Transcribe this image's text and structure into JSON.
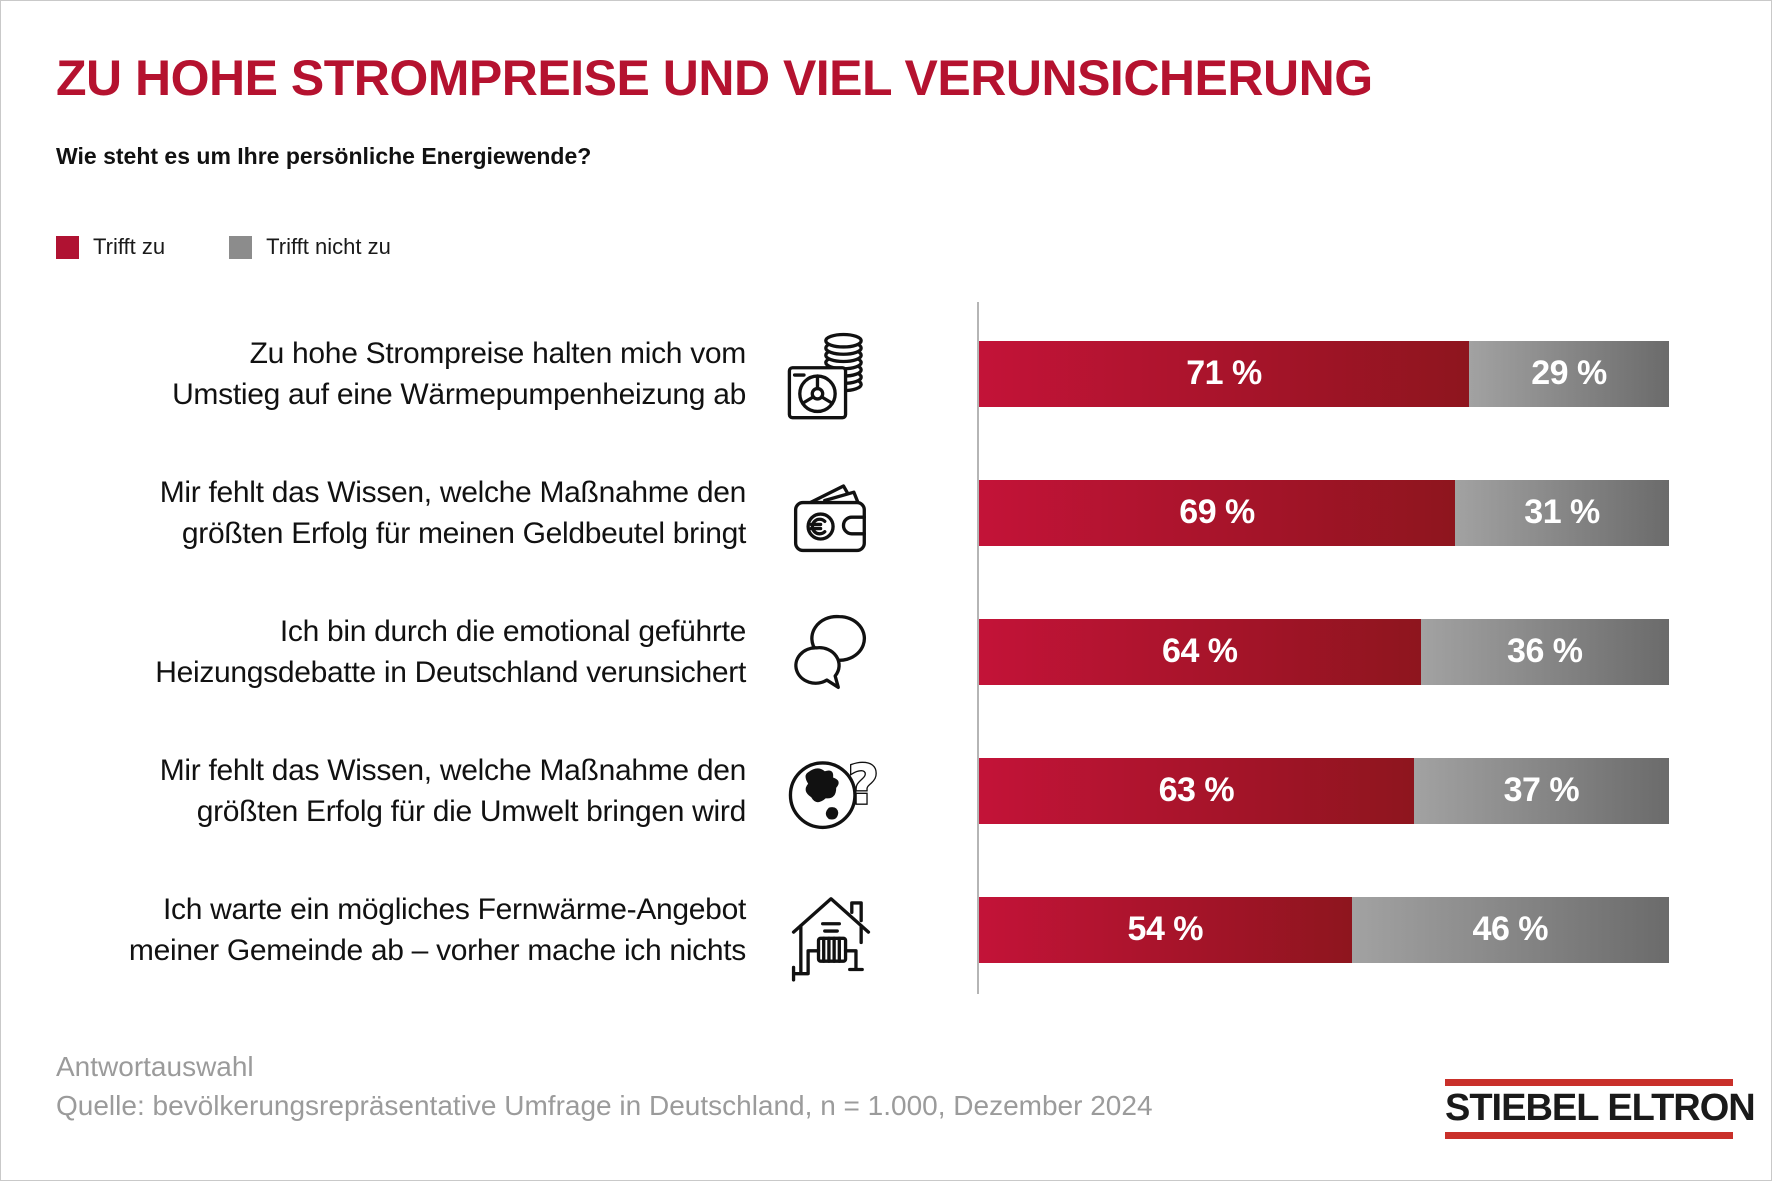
{
  "header": {
    "title": "ZU HOHE STROMPREISE UND VIEL VERUNSICHERUNG",
    "subtitle": "Wie steht es um Ihre persönliche Energiewende?"
  },
  "legend": {
    "items": [
      {
        "label": "Trifft zu",
        "color": "#b01232"
      },
      {
        "label": "Trifft nicht zu",
        "color": "#8c8c8c"
      }
    ]
  },
  "chart_data": {
    "type": "bar",
    "orientation": "horizontal-stacked",
    "unit": "%",
    "xlim": [
      0,
      100
    ],
    "grid": false,
    "categories": [
      "Zu hohe Strompreise halten mich vom\nUmstieg auf eine Wärmepumpenheizung ab",
      "Mir fehlt das Wissen, welche Maßnahme den\ngrößten Erfolg für meinen Geldbeutel bringt",
      "Ich bin durch die emotional geführte\nHeizungsdebatte in Deutschland verunsichert",
      "Mir fehlt das Wissen, welche Maßnahme den\ngrößten Erfolg für die Umwelt bringen wird",
      "Ich warte ein mögliches Fernwärme-Angebot\nmeiner Gemeinde ab – vorher mache ich nichts"
    ],
    "icons": [
      "heat-pump-coins-icon",
      "wallet-euro-icon",
      "speech-bubbles-icon",
      "globe-question-icon",
      "house-heating-icon"
    ],
    "series": [
      {
        "name": "Trifft zu",
        "values": [
          71,
          69,
          64,
          63,
          54
        ],
        "color_start": "#c31338",
        "color_end": "#8e151e"
      },
      {
        "name": "Trifft nicht zu",
        "values": [
          29,
          31,
          36,
          37,
          46
        ],
        "color_start": "#a2a2a2",
        "color_end": "#6b6b6b"
      }
    ],
    "value_labels": [
      [
        "71 %",
        "29 %"
      ],
      [
        "69 %",
        "31 %"
      ],
      [
        "64 %",
        "36 %"
      ],
      [
        "63 %",
        "37 %"
      ],
      [
        "54 %",
        "46 %"
      ]
    ]
  },
  "footer": {
    "note": "Antwortauswahl",
    "source": "Quelle: bevölkerungsrepräsentative Umfrage in Deutschland, n = 1.000, Dezember 2024"
  },
  "logo": {
    "text": "STIEBEL ELTRON",
    "bar_color": "#c9302a"
  }
}
